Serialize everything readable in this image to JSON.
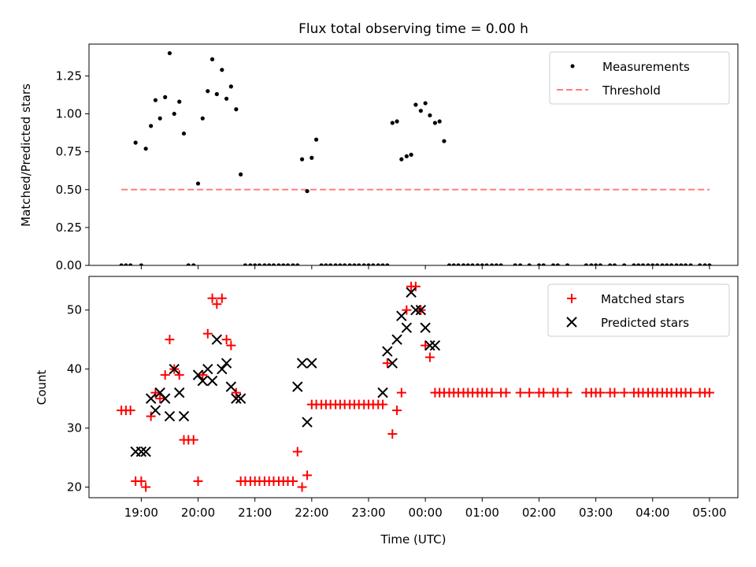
{
  "chart_data": [
    {
      "type": "scatter",
      "title": "Flux total observing time = 0.00 h",
      "xlabel": "",
      "ylabel": "Matched/Predicted stars",
      "xlim": [
        -0.92,
        10.5
      ],
      "ylim": [
        0,
        1.46
      ],
      "yticks": [
        0.0,
        0.25,
        0.5,
        0.75,
        1.0,
        1.25
      ],
      "ytick_labels": [
        "0.00",
        "0.25",
        "0.50",
        "0.75",
        "1.00",
        "1.25"
      ],
      "legend": [
        "Measurements",
        "Threshold"
      ],
      "legend_position": "top-right",
      "threshold": {
        "name": "Threshold",
        "value": 0.5,
        "x_start": -0.35,
        "x_end": 10.0,
        "color": "#ff7f7f"
      },
      "series": [
        {
          "name": "Measurements",
          "marker": "dot",
          "color": "#000000",
          "points": [
            [
              -0.35,
              0
            ],
            [
              -0.27,
              0
            ],
            [
              -0.19,
              0
            ],
            [
              -0.1,
              0.81
            ],
            [
              0.0,
              0
            ],
            [
              0.08,
              0.77
            ],
            [
              0.17,
              0.92
            ],
            [
              0.25,
              1.09
            ],
            [
              0.33,
              0.97
            ],
            [
              0.42,
              1.11
            ],
            [
              0.5,
              1.4
            ],
            [
              0.58,
              1.0
            ],
            [
              0.67,
              1.08
            ],
            [
              0.75,
              0.87
            ],
            [
              0.83,
              0
            ],
            [
              0.92,
              0
            ],
            [
              1.0,
              0.54
            ],
            [
              1.08,
              0.97
            ],
            [
              1.17,
              1.15
            ],
            [
              1.25,
              1.36
            ],
            [
              1.33,
              1.13
            ],
            [
              1.42,
              1.29
            ],
            [
              1.5,
              1.1
            ],
            [
              1.58,
              1.18
            ],
            [
              1.67,
              1.03
            ],
            [
              1.75,
              0.6
            ],
            [
              1.83,
              0
            ],
            [
              1.92,
              0
            ],
            [
              2.0,
              0
            ],
            [
              2.08,
              0
            ],
            [
              2.17,
              0
            ],
            [
              2.25,
              0
            ],
            [
              2.33,
              0
            ],
            [
              2.42,
              0
            ],
            [
              2.5,
              0
            ],
            [
              2.58,
              0
            ],
            [
              2.67,
              0
            ],
            [
              2.75,
              0
            ],
            [
              2.83,
              0.7
            ],
            [
              2.92,
              0.49
            ],
            [
              3.0,
              0.71
            ],
            [
              3.08,
              0.83
            ],
            [
              3.17,
              0
            ],
            [
              3.25,
              0
            ],
            [
              3.33,
              0
            ],
            [
              3.42,
              0
            ],
            [
              3.5,
              0
            ],
            [
              3.58,
              0
            ],
            [
              3.67,
              0
            ],
            [
              3.75,
              0
            ],
            [
              3.83,
              0
            ],
            [
              3.92,
              0
            ],
            [
              4.0,
              0
            ],
            [
              4.08,
              0
            ],
            [
              4.17,
              0
            ],
            [
              4.25,
              0
            ],
            [
              4.33,
              0
            ],
            [
              4.42,
              0.94
            ],
            [
              4.5,
              0.95
            ],
            [
              4.58,
              0.7
            ],
            [
              4.67,
              0.72
            ],
            [
              4.75,
              0.73
            ],
            [
              4.83,
              1.06
            ],
            [
              4.92,
              1.02
            ],
            [
              5.0,
              1.07
            ],
            [
              5.08,
              0.99
            ],
            [
              5.17,
              0.94
            ],
            [
              5.25,
              0.95
            ],
            [
              5.33,
              0.82
            ],
            [
              5.42,
              0
            ],
            [
              5.5,
              0
            ],
            [
              5.58,
              0
            ],
            [
              5.67,
              0
            ],
            [
              5.75,
              0
            ],
            [
              5.83,
              0
            ],
            [
              5.92,
              0
            ],
            [
              6.0,
              0
            ],
            [
              6.08,
              0
            ],
            [
              6.17,
              0
            ],
            [
              6.25,
              0
            ],
            [
              6.33,
              0
            ],
            [
              6.58,
              0
            ],
            [
              6.67,
              0
            ],
            [
              6.83,
              0
            ],
            [
              7.0,
              0
            ],
            [
              7.08,
              0
            ],
            [
              7.25,
              0
            ],
            [
              7.33,
              0
            ],
            [
              7.5,
              0
            ],
            [
              7.83,
              0
            ],
            [
              7.92,
              0
            ],
            [
              8.0,
              0
            ],
            [
              8.08,
              0
            ],
            [
              8.25,
              0
            ],
            [
              8.33,
              0
            ],
            [
              8.5,
              0
            ],
            [
              8.67,
              0
            ],
            [
              8.75,
              0
            ],
            [
              8.83,
              0
            ],
            [
              8.92,
              0
            ],
            [
              9.0,
              0
            ],
            [
              9.08,
              0
            ],
            [
              9.17,
              0
            ],
            [
              9.25,
              0
            ],
            [
              9.33,
              0
            ],
            [
              9.42,
              0
            ],
            [
              9.5,
              0
            ],
            [
              9.58,
              0
            ],
            [
              9.67,
              0
            ],
            [
              9.83,
              0
            ],
            [
              9.92,
              0
            ],
            [
              10.0,
              0
            ]
          ]
        }
      ]
    },
    {
      "type": "scatter",
      "title": "",
      "xlabel": "Time (UTC)",
      "ylabel": "Count",
      "xlim": [
        -0.92,
        10.5
      ],
      "ylim": [
        18.2,
        55.7
      ],
      "yticks": [
        20,
        30,
        40,
        50
      ],
      "ytick_labels": [
        "20",
        "30",
        "40",
        "50"
      ],
      "xticks": [
        0,
        1,
        2,
        3,
        4,
        5,
        6,
        7,
        8,
        9,
        10
      ],
      "xtick_labels": [
        "19:00",
        "20:00",
        "21:00",
        "22:00",
        "23:00",
        "00:00",
        "01:00",
        "02:00",
        "03:00",
        "04:00",
        "05:00"
      ],
      "legend": [
        "Matched stars",
        "Predicted stars"
      ],
      "legend_position": "top-right",
      "series": [
        {
          "name": "Matched stars",
          "marker": "plus",
          "color": "#ff0000",
          "points": [
            [
              -0.35,
              33
            ],
            [
              -0.27,
              33
            ],
            [
              -0.19,
              33
            ],
            [
              -0.1,
              21
            ],
            [
              0.0,
              21
            ],
            [
              0.08,
              20
            ],
            [
              0.17,
              32
            ],
            [
              0.25,
              36
            ],
            [
              0.33,
              35
            ],
            [
              0.42,
              39
            ],
            [
              0.5,
              45
            ],
            [
              0.58,
              40
            ],
            [
              0.67,
              39
            ],
            [
              0.75,
              28
            ],
            [
              0.83,
              28
            ],
            [
              0.92,
              28
            ],
            [
              1.0,
              21
            ],
            [
              1.08,
              39
            ],
            [
              1.17,
              46
            ],
            [
              1.25,
              52
            ],
            [
              1.33,
              51
            ],
            [
              1.42,
              52
            ],
            [
              1.5,
              45
            ],
            [
              1.58,
              44
            ],
            [
              1.67,
              36
            ],
            [
              1.75,
              21
            ],
            [
              1.83,
              21
            ],
            [
              1.92,
              21
            ],
            [
              2.0,
              21
            ],
            [
              2.08,
              21
            ],
            [
              2.17,
              21
            ],
            [
              2.25,
              21
            ],
            [
              2.33,
              21
            ],
            [
              2.42,
              21
            ],
            [
              2.5,
              21
            ],
            [
              2.58,
              21
            ],
            [
              2.67,
              21
            ],
            [
              2.75,
              26
            ],
            [
              2.83,
              20
            ],
            [
              2.92,
              22
            ],
            [
              3.0,
              34
            ],
            [
              3.08,
              34
            ],
            [
              3.17,
              34
            ],
            [
              3.25,
              34
            ],
            [
              3.33,
              34
            ],
            [
              3.42,
              34
            ],
            [
              3.5,
              34
            ],
            [
              3.58,
              34
            ],
            [
              3.67,
              34
            ],
            [
              3.75,
              34
            ],
            [
              3.83,
              34
            ],
            [
              3.92,
              34
            ],
            [
              4.0,
              34
            ],
            [
              4.08,
              34
            ],
            [
              4.17,
              34
            ],
            [
              4.25,
              34
            ],
            [
              4.33,
              41
            ],
            [
              4.42,
              29
            ],
            [
              4.5,
              33
            ],
            [
              4.58,
              36
            ],
            [
              4.67,
              50
            ],
            [
              4.75,
              54
            ],
            [
              4.83,
              54
            ],
            [
              4.92,
              50
            ],
            [
              5.0,
              44
            ],
            [
              5.08,
              42
            ],
            [
              5.17,
              36
            ],
            [
              5.25,
              36
            ],
            [
              5.33,
              36
            ],
            [
              5.42,
              36
            ],
            [
              5.5,
              36
            ],
            [
              5.58,
              36
            ],
            [
              5.67,
              36
            ],
            [
              5.75,
              36
            ],
            [
              5.83,
              36
            ],
            [
              5.92,
              36
            ],
            [
              6.0,
              36
            ],
            [
              6.08,
              36
            ],
            [
              6.17,
              36
            ],
            [
              6.33,
              36
            ],
            [
              6.42,
              36
            ],
            [
              6.67,
              36
            ],
            [
              6.83,
              36
            ],
            [
              7.0,
              36
            ],
            [
              7.08,
              36
            ],
            [
              7.25,
              36
            ],
            [
              7.33,
              36
            ],
            [
              7.5,
              36
            ],
            [
              7.83,
              36
            ],
            [
              7.92,
              36
            ],
            [
              8.0,
              36
            ],
            [
              8.08,
              36
            ],
            [
              8.25,
              36
            ],
            [
              8.33,
              36
            ],
            [
              8.5,
              36
            ],
            [
              8.67,
              36
            ],
            [
              8.75,
              36
            ],
            [
              8.83,
              36
            ],
            [
              8.92,
              36
            ],
            [
              9.0,
              36
            ],
            [
              9.08,
              36
            ],
            [
              9.17,
              36
            ],
            [
              9.25,
              36
            ],
            [
              9.33,
              36
            ],
            [
              9.42,
              36
            ],
            [
              9.5,
              36
            ],
            [
              9.58,
              36
            ],
            [
              9.67,
              36
            ],
            [
              9.83,
              36
            ],
            [
              9.92,
              36
            ],
            [
              10.0,
              36
            ]
          ]
        },
        {
          "name": "Predicted stars",
          "marker": "x",
          "color": "#000000",
          "points": [
            [
              -0.1,
              26
            ],
            [
              0.0,
              26
            ],
            [
              0.08,
              26
            ],
            [
              0.17,
              35
            ],
            [
              0.25,
              33
            ],
            [
              0.33,
              36
            ],
            [
              0.42,
              35
            ],
            [
              0.5,
              32
            ],
            [
              0.58,
              40
            ],
            [
              0.67,
              36
            ],
            [
              0.75,
              32
            ],
            [
              1.0,
              39
            ],
            [
              1.08,
              38
            ],
            [
              1.17,
              40
            ],
            [
              1.25,
              38
            ],
            [
              1.33,
              45
            ],
            [
              1.42,
              40
            ],
            [
              1.5,
              41
            ],
            [
              1.58,
              37
            ],
            [
              1.67,
              35
            ],
            [
              1.75,
              35
            ],
            [
              2.75,
              37
            ],
            [
              2.83,
              41
            ],
            [
              2.92,
              31
            ],
            [
              3.0,
              41
            ],
            [
              4.25,
              36
            ],
            [
              4.33,
              43
            ],
            [
              4.42,
              41
            ],
            [
              4.5,
              45
            ],
            [
              4.58,
              49
            ],
            [
              4.67,
              47
            ],
            [
              4.75,
              53
            ],
            [
              4.83,
              50
            ],
            [
              4.92,
              50
            ],
            [
              5.0,
              47
            ],
            [
              5.08,
              44
            ],
            [
              5.17,
              44
            ]
          ]
        }
      ]
    }
  ]
}
